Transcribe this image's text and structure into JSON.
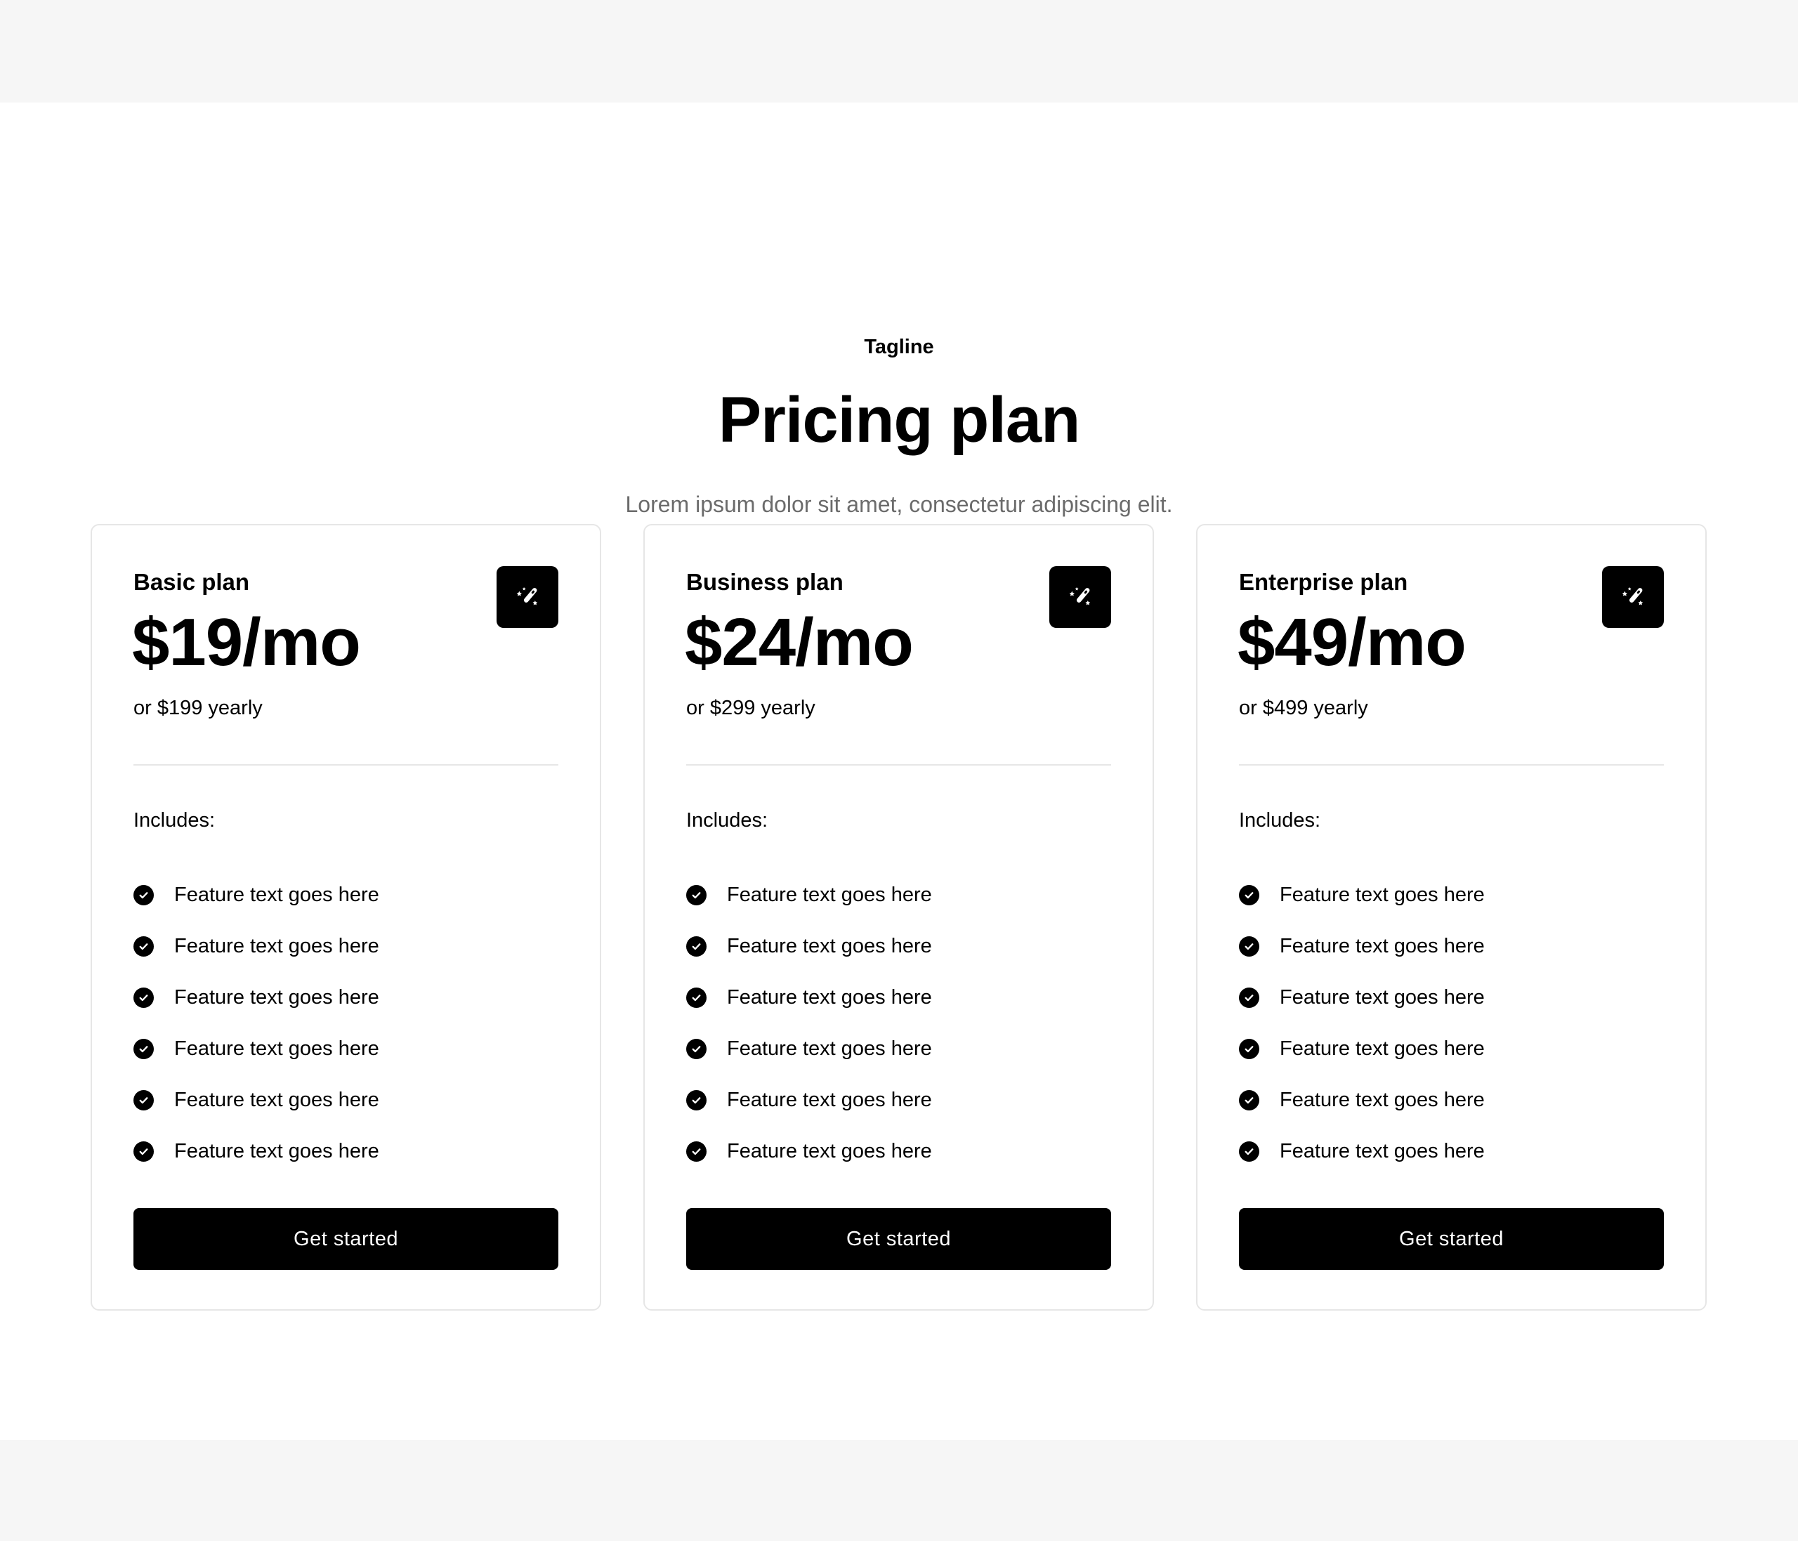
{
  "header": {
    "tagline": "Tagline",
    "title": "Pricing plan",
    "subtitle": "Lorem ipsum dolor sit amet, consectetur adipiscing elit."
  },
  "plans": [
    {
      "name": "Basic plan",
      "price": "$19/mo",
      "yearly": "or $199 yearly",
      "includes": "Includes:",
      "icon": "magic-wand-icon",
      "features": [
        "Feature text goes here",
        "Feature text goes here",
        "Feature text goes here",
        "Feature text goes here",
        "Feature text goes here",
        "Feature text goes here"
      ],
      "cta": "Get started"
    },
    {
      "name": "Business plan",
      "price": "$24/mo",
      "yearly": "or $299 yearly",
      "includes": "Includes:",
      "icon": "magic-wand-icon",
      "features": [
        "Feature text goes here",
        "Feature text goes here",
        "Feature text goes here",
        "Feature text goes here",
        "Feature text goes here",
        "Feature text goes here"
      ],
      "cta": "Get started"
    },
    {
      "name": "Enterprise plan",
      "price": "$49/mo",
      "yearly": "or $499 yearly",
      "includes": "Includes:",
      "icon": "magic-wand-icon",
      "features": [
        "Feature text goes here",
        "Feature text goes here",
        "Feature text goes here",
        "Feature text goes here",
        "Feature text goes here",
        "Feature text goes here"
      ],
      "cta": "Get started"
    }
  ]
}
